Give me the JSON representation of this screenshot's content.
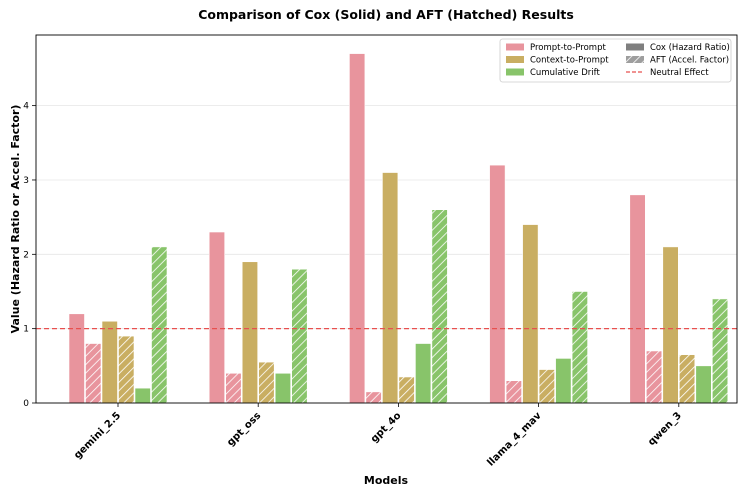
{
  "chart_data": {
    "type": "bar",
    "title": "Comparison of Cox (Solid) and AFT (Hatched) Results",
    "xlabel": "Models",
    "ylabel": "Value (Hazard Ratio or Accel. Factor)",
    "categories": [
      "gemini_2.5",
      "gpt_oss",
      "gpt_4o",
      "llama_4_mav",
      "qwen_3"
    ],
    "ylim": [
      0,
      4.95
    ],
    "yticks": [
      0,
      1,
      2,
      3,
      4
    ],
    "grid": true,
    "reference_line": {
      "value": 1,
      "label": "Neutral Effect",
      "color": "#e8504f"
    },
    "series": [
      {
        "name": "Prompt-to-Prompt (Cox)",
        "metric": "Prompt-to-Prompt",
        "model": "Cox",
        "color": "#e8949d",
        "hatched": false,
        "values": [
          1.2,
          2.3,
          4.7,
          3.2,
          2.8
        ]
      },
      {
        "name": "Prompt-to-Prompt (AFT)",
        "metric": "Prompt-to-Prompt",
        "model": "AFT",
        "color": "#e8949d",
        "hatched": true,
        "values": [
          0.8,
          0.4,
          0.15,
          0.3,
          0.7
        ]
      },
      {
        "name": "Context-to-Prompt (Cox)",
        "metric": "Context-to-Prompt",
        "model": "Cox",
        "color": "#c9ae62",
        "hatched": false,
        "values": [
          1.1,
          1.9,
          3.1,
          2.4,
          2.1
        ]
      },
      {
        "name": "Context-to-Prompt (AFT)",
        "metric": "Context-to-Prompt",
        "model": "AFT",
        "color": "#c9ae62",
        "hatched": true,
        "values": [
          0.9,
          0.55,
          0.35,
          0.45,
          0.65
        ]
      },
      {
        "name": "Cumulative Drift (Cox)",
        "metric": "Cumulative Drift",
        "model": "Cox",
        "color": "#88c46a",
        "hatched": false,
        "values": [
          0.2,
          0.4,
          0.8,
          0.6,
          0.5
        ]
      },
      {
        "name": "Cumulative Drift (AFT)",
        "metric": "Cumulative Drift",
        "model": "AFT",
        "color": "#88c46a",
        "hatched": true,
        "values": [
          2.1,
          1.8,
          2.6,
          1.5,
          1.4
        ]
      }
    ],
    "legend": {
      "position": "top-right",
      "items": [
        {
          "label": "Prompt-to-Prompt",
          "kind": "solid",
          "color": "#e8949d"
        },
        {
          "label": "Cox (Hazard Ratio)",
          "kind": "solid",
          "color": "#7f7f7f"
        },
        {
          "label": "Context-to-Prompt",
          "kind": "solid",
          "color": "#c9ae62"
        },
        {
          "label": "AFT (Accel. Factor)",
          "kind": "hatched",
          "color": "#9e9e9e"
        },
        {
          "label": "Cumulative Drift",
          "kind": "solid",
          "color": "#88c46a"
        },
        {
          "label": "Neutral Effect",
          "kind": "line",
          "color": "#e8504f"
        }
      ]
    }
  }
}
